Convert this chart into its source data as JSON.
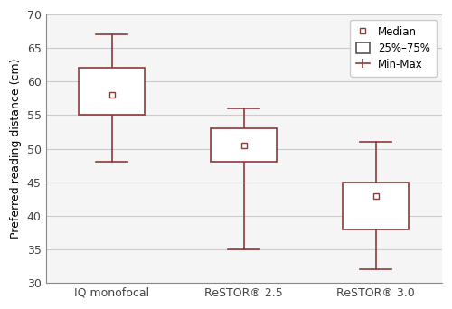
{
  "categories": [
    "IQ monofocal",
    "ReSTOR® 2.5",
    "ReSTOR® 3.0"
  ],
  "medians": [
    58,
    50.5,
    43
  ],
  "q1": [
    55,
    48,
    38
  ],
  "q3": [
    62,
    53,
    45
  ],
  "mins": [
    48,
    35,
    32
  ],
  "maxs": [
    67,
    56,
    51
  ],
  "ylim": [
    30,
    70
  ],
  "yticks": [
    30,
    35,
    40,
    45,
    50,
    55,
    60,
    65,
    70
  ],
  "ylabel": "Preferred reading distance (cm)",
  "box_color": "#8B3A3A",
  "box_facecolor": "white",
  "median_marker": "s",
  "median_markersize": 4,
  "whisker_capsize": 0.12,
  "legend_median_label": "Median",
  "legend_box_label": "25%–75%",
  "legend_minmax_label": "Min-Max",
  "background_color": "white",
  "plot_bg_color": "#f5f5f5",
  "grid_color": "#cccccc",
  "box_width": 0.5
}
